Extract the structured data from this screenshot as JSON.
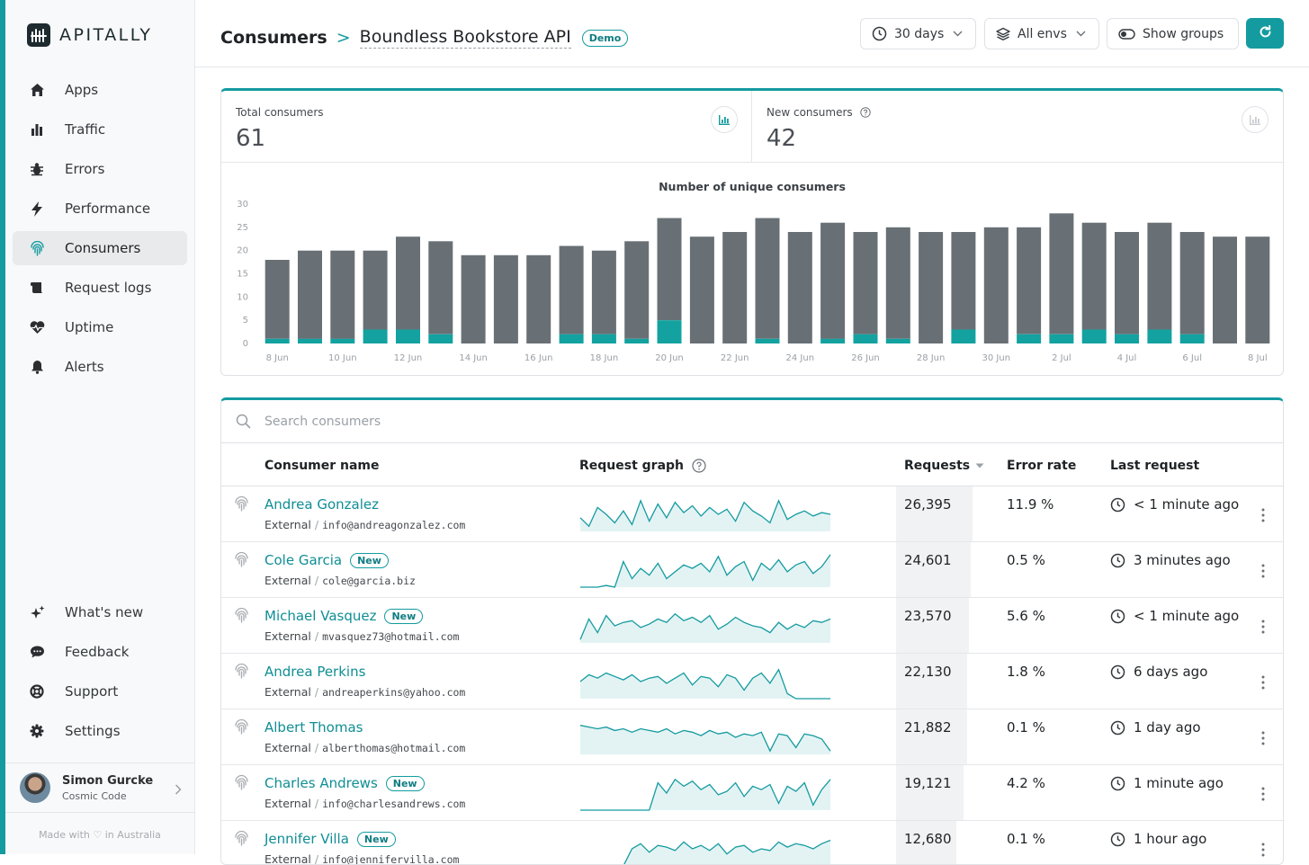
{
  "app": {
    "brand": "APITALLY"
  },
  "sidebar": {
    "items": [
      {
        "label": "Apps",
        "icon": "home-icon"
      },
      {
        "label": "Traffic",
        "icon": "bar-chart-icon"
      },
      {
        "label": "Errors",
        "icon": "bug-icon"
      },
      {
        "label": "Performance",
        "icon": "bolt-icon"
      },
      {
        "label": "Consumers",
        "icon": "fingerprint-icon",
        "active": true
      },
      {
        "label": "Request logs",
        "icon": "scroll-icon"
      },
      {
        "label": "Uptime",
        "icon": "heartbeat-icon"
      },
      {
        "label": "Alerts",
        "icon": "bell-icon"
      }
    ],
    "bottom_items": [
      {
        "label": "What's new",
        "icon": "sparkles-icon"
      },
      {
        "label": "Feedback",
        "icon": "chat-icon"
      },
      {
        "label": "Support",
        "icon": "lifebuoy-icon"
      },
      {
        "label": "Settings",
        "icon": "gear-icon"
      }
    ],
    "user": {
      "name": "Simon Gurcke",
      "org": "Cosmic Code"
    },
    "made_with": "Made with ♡ in Australia"
  },
  "header": {
    "title": "Consumers",
    "separator": ">",
    "subtitle": "Boundless Bookstore API",
    "badge": "Demo",
    "period": "30 days",
    "envs": "All envs",
    "groups": "Show groups"
  },
  "stats": {
    "total_label": "Total consumers",
    "total_value": "61",
    "new_label": "New consumers",
    "new_value": "42"
  },
  "chart_data": {
    "type": "bar",
    "title": "Number of unique consumers",
    "ylim": [
      0,
      30
    ],
    "yticks": [
      "30",
      "25",
      "20",
      "15",
      "10",
      "5",
      "0"
    ],
    "tick_labels": [
      "8 Jun",
      "10 Jun",
      "12 Jun",
      "14 Jun",
      "16 Jun",
      "18 Jun",
      "20 Jun",
      "22 Jun",
      "24 Jun",
      "26 Jun",
      "28 Jun",
      "30 Jun",
      "2 Jul",
      "4 Jul",
      "6 Jul",
      "8 Jul"
    ],
    "categories": [
      "8 Jun",
      "9 Jun",
      "10 Jun",
      "11 Jun",
      "12 Jun",
      "13 Jun",
      "14 Jun",
      "15 Jun",
      "16 Jun",
      "17 Jun",
      "18 Jun",
      "19 Jun",
      "20 Jun",
      "21 Jun",
      "22 Jun",
      "23 Jun",
      "24 Jun",
      "25 Jun",
      "26 Jun",
      "27 Jun",
      "28 Jun",
      "29 Jun",
      "30 Jun",
      "1 Jul",
      "2 Jul",
      "3 Jul",
      "4 Jul",
      "5 Jul",
      "6 Jul",
      "7 Jul",
      "8 Jul"
    ],
    "series": [
      {
        "name": "Existing consumers",
        "color": "#687075",
        "values": [
          17,
          19,
          19,
          17,
          20,
          20,
          19,
          19,
          19,
          19,
          18,
          21,
          22,
          23,
          24,
          26,
          24,
          25,
          22,
          24,
          24,
          21,
          25,
          23,
          26,
          23,
          22,
          23,
          22,
          23,
          23
        ]
      },
      {
        "name": "New consumers",
        "color": "#13a2a0",
        "values": [
          1,
          1,
          1,
          3,
          3,
          2,
          0,
          0,
          0,
          2,
          2,
          1,
          5,
          0,
          0,
          1,
          0,
          1,
          2,
          1,
          0,
          3,
          0,
          2,
          2,
          3,
          2,
          3,
          2,
          0,
          0
        ]
      }
    ]
  },
  "table": {
    "search_placeholder": "Search consumers",
    "headers": {
      "name": "Consumer name",
      "graph": "Request graph",
      "requests": "Requests",
      "error_rate": "Error rate",
      "last_request": "Last request"
    },
    "rows": [
      {
        "name": "Andrea Gonzalez",
        "is_new": false,
        "new_label": "",
        "type": "External",
        "sep": "/",
        "email": "info@andreagonzalez.com",
        "requests": "26,395",
        "requests_share": 1.0,
        "error_rate": "11.9 %",
        "last_request": "< 1 minute ago",
        "spark": [
          8,
          3,
          14,
          10,
          5,
          12,
          4,
          18,
          6,
          16,
          8,
          17,
          11,
          15,
          9,
          14,
          10,
          13,
          6,
          17,
          12,
          9,
          5,
          18,
          7,
          10,
          12,
          9,
          11,
          10
        ]
      },
      {
        "name": "Cole Garcia",
        "is_new": true,
        "new_label": "New",
        "type": "External",
        "sep": "/",
        "email": "cole@garcia.biz",
        "requests": "24,601",
        "requests_share": 0.93,
        "error_rate": "0.5 %",
        "last_request": "3 minutes ago",
        "spark": [
          0,
          0,
          0,
          1,
          0,
          15,
          5,
          11,
          7,
          14,
          5,
          9,
          13,
          11,
          14,
          9,
          18,
          7,
          12,
          15,
          4,
          14,
          10,
          16,
          9,
          13,
          15,
          8,
          12,
          19
        ]
      },
      {
        "name": "Michael Vasquez",
        "is_new": true,
        "new_label": "New",
        "type": "External",
        "sep": "/",
        "email": "mvasquez73@hotmail.com",
        "requests": "23,570",
        "requests_share": 0.89,
        "error_rate": "5.6 %",
        "last_request": "< 1 minute ago",
        "spark": [
          2,
          14,
          6,
          16,
          10,
          12,
          13,
          9,
          11,
          14,
          12,
          17,
          13,
          15,
          12,
          16,
          8,
          11,
          15,
          12,
          10,
          9,
          6,
          12,
          8,
          11,
          9,
          13,
          12,
          14
        ]
      },
      {
        "name": "Andrea Perkins",
        "is_new": false,
        "new_label": "",
        "type": "External",
        "sep": "/",
        "email": "andreaperkins@yahoo.com",
        "requests": "22,130",
        "requests_share": 0.84,
        "error_rate": "1.8 %",
        "last_request": "6 days ago",
        "spark": [
          10,
          14,
          12,
          15,
          13,
          11,
          14,
          10,
          12,
          13,
          9,
          12,
          15,
          8,
          13,
          12,
          7,
          14,
          12,
          5,
          12,
          15,
          9,
          17,
          3,
          0,
          0,
          0,
          0,
          0
        ]
      },
      {
        "name": "Albert Thomas",
        "is_new": false,
        "new_label": "",
        "type": "External",
        "sep": "/",
        "email": "alberthomas@hotmail.com",
        "requests": "21,882",
        "requests_share": 0.83,
        "error_rate": "0.1 %",
        "last_request": "1 day ago",
        "spark": [
          17,
          16,
          15,
          16,
          14,
          15,
          13,
          15,
          14,
          13,
          15,
          12,
          14,
          13,
          11,
          14,
          12,
          13,
          10,
          12,
          11,
          13,
          2,
          12,
          11,
          4,
          12,
          11,
          9,
          2
        ]
      },
      {
        "name": "Charles Andrews",
        "is_new": true,
        "new_label": "New",
        "type": "External",
        "sep": "/",
        "email": "info@charlesandrews.com",
        "requests": "19,121",
        "requests_share": 0.72,
        "error_rate": "4.2 %",
        "last_request": "1 minute ago",
        "spark": [
          0,
          0,
          0,
          0,
          0,
          0,
          0,
          0,
          0,
          16,
          10,
          18,
          14,
          17,
          12,
          15,
          9,
          11,
          16,
          8,
          14,
          12,
          15,
          4,
          14,
          11,
          16,
          3,
          12,
          18
        ]
      },
      {
        "name": "Jennifer Villa",
        "is_new": true,
        "new_label": "New",
        "type": "External",
        "sep": "/",
        "email": "info@jennifervilla.com",
        "requests": "12,680",
        "requests_share": 0.48,
        "error_rate": "0.1 %",
        "last_request": "1 hour ago",
        "spark": [
          0,
          0,
          0,
          0,
          0,
          0,
          10,
          13,
          8,
          12,
          11,
          9,
          14,
          10,
          12,
          9,
          13,
          7,
          11,
          12,
          8,
          10,
          9,
          14,
          11,
          13,
          12,
          10,
          13,
          15
        ]
      }
    ]
  }
}
